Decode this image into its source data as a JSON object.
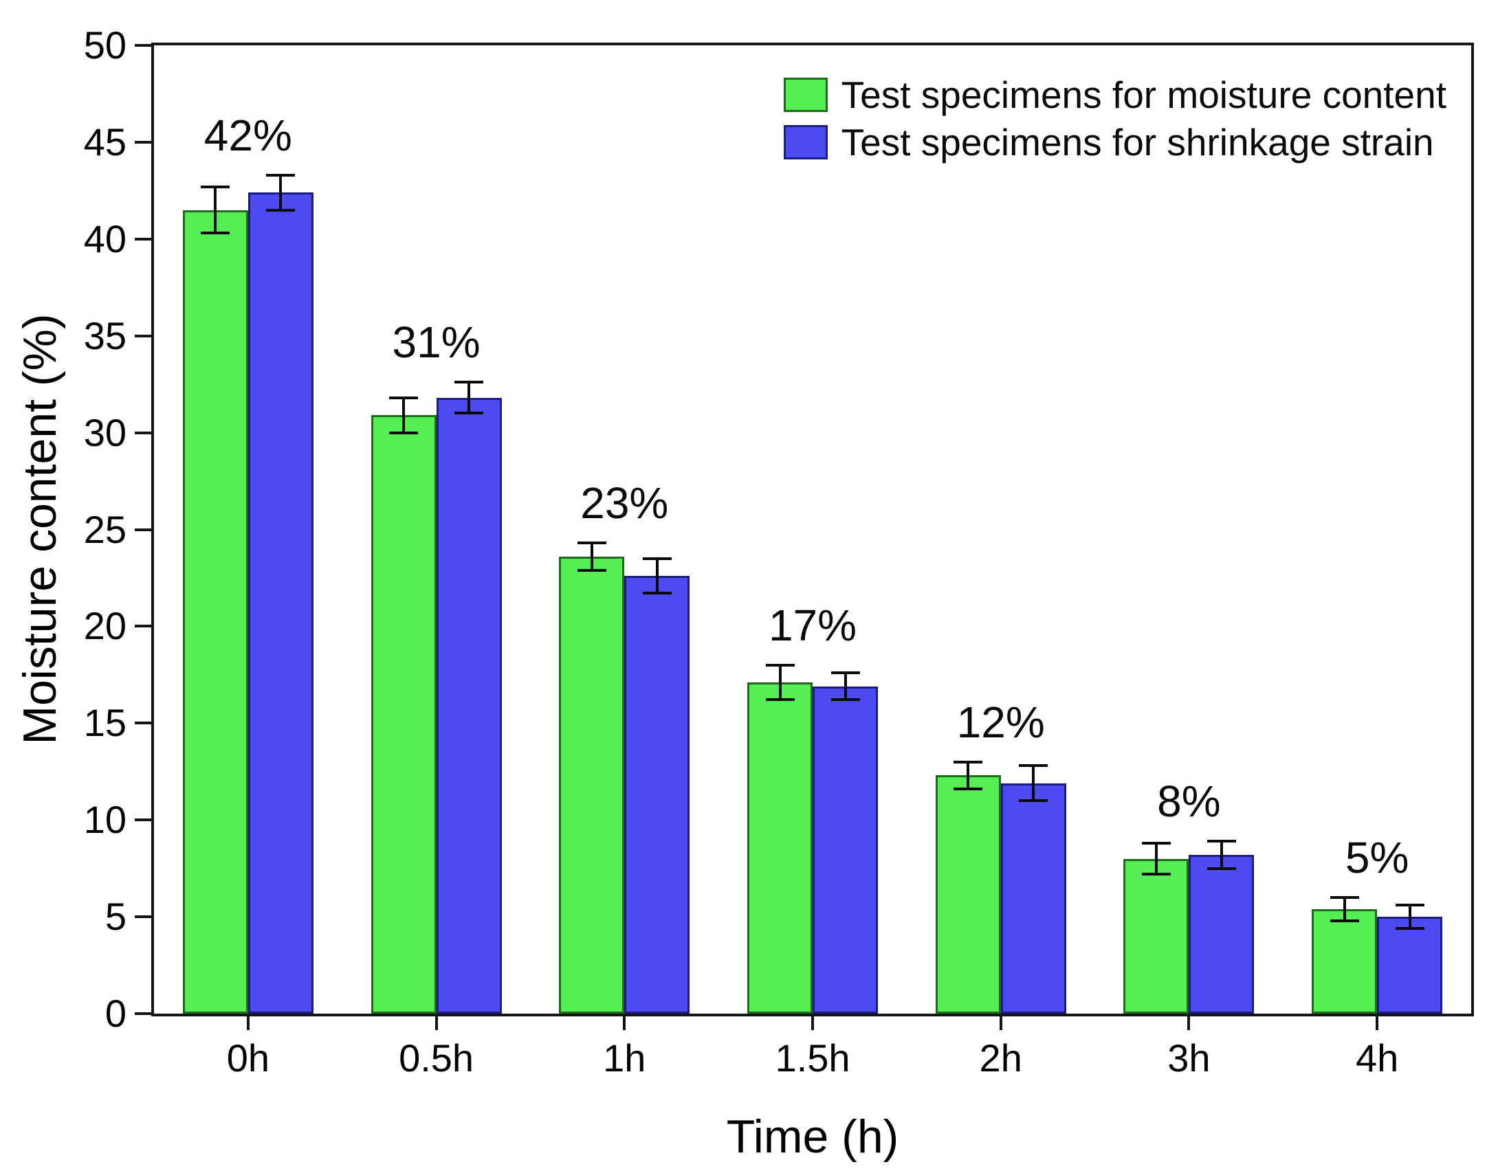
{
  "chart_data": {
    "type": "bar",
    "title": "",
    "xlabel": "Time (h)",
    "ylabel": "Moisture content (%)",
    "categories": [
      "0h",
      "0.5h",
      "1h",
      "1.5h",
      "2h",
      "3h",
      "4h"
    ],
    "series": [
      {
        "name": "Test specimens for moisture content",
        "color": "#55ee55",
        "border_color": "#1e6b1e",
        "values": [
          41.5,
          30.9,
          23.6,
          17.1,
          12.3,
          8.0,
          5.4
        ],
        "errors": [
          1.2,
          0.9,
          0.7,
          0.9,
          0.7,
          0.8,
          0.6
        ]
      },
      {
        "name": "Test specimens for shrinkage strain",
        "color": "#4b4bef",
        "border_color": "#1c1c80",
        "values": [
          42.4,
          31.8,
          22.6,
          16.9,
          11.9,
          8.2,
          5.0
        ],
        "errors": [
          0.9,
          0.8,
          0.9,
          0.7,
          0.9,
          0.7,
          0.6
        ]
      }
    ],
    "annotations": [
      "42%",
      "31%",
      "23%",
      "17%",
      "12%",
      "8%",
      "5%"
    ],
    "ylim": [
      0,
      50
    ],
    "yticks": [
      0,
      5,
      10,
      15,
      20,
      25,
      30,
      35,
      40,
      45,
      50
    ],
    "grid": false,
    "legend_position": "top-right",
    "error_bar_color": "#000000",
    "background_color": "#ffffff"
  }
}
